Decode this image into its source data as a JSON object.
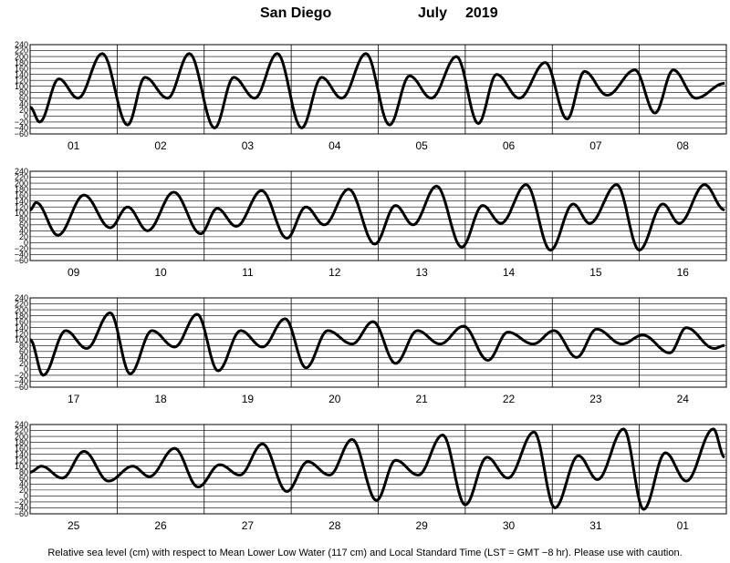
{
  "title": {
    "location": "San Diego",
    "month": "July",
    "year": "2019"
  },
  "footer": "Relative sea level (cm) with respect to Mean Lower Low Water (117 cm) and Local Standard Time (LST = GMT −8 hr). Please use with caution.",
  "chart_data": {
    "type": "line",
    "title": "San Diego July 2019",
    "ylim": [
      -60,
      240
    ],
    "yticks": [
      "240",
      "220",
      "200",
      "180",
      "160",
      "140",
      "120",
      "100",
      "80",
      "60",
      "40",
      "20",
      "0",
      "−20",
      "−40",
      "−60"
    ],
    "grid": true,
    "panels": [
      {
        "days": [
          "01",
          "02",
          "03",
          "04",
          "05",
          "06",
          "07",
          "08"
        ],
        "series": [
          {
            "x": [
              0,
              0.11,
              0.33,
              0.55,
              0.83,
              1.12,
              1.32,
              1.58,
              1.83,
              2.12,
              2.34,
              2.58,
              2.84,
              3.12,
              3.35,
              3.58,
              3.86,
              4.13,
              4.36,
              4.61,
              4.9,
              5.15,
              5.36,
              5.62,
              5.92,
              6.17,
              6.37,
              6.63,
              6.95,
              7.18,
              7.39,
              7.65,
              7.98
            ],
            "y": [
              30,
              -20,
              125,
              60,
              210,
              -30,
              130,
              60,
              210,
              -40,
              130,
              60,
              210,
              -40,
              130,
              60,
              210,
              -30,
              135,
              60,
              200,
              -25,
              140,
              60,
              180,
              -10,
              150,
              70,
              155,
              10,
              155,
              60,
              110
            ]
          }
        ]
      },
      {
        "days": [
          "09",
          "10",
          "11",
          "12",
          "13",
          "14",
          "15",
          "16"
        ],
        "series": [
          {
            "x": [
              0,
              0.07,
              0.32,
              0.62,
              0.92,
              1.12,
              1.35,
              1.65,
              1.96,
              2.15,
              2.37,
              2.66,
              2.95,
              3.17,
              3.38,
              3.66,
              3.96,
              4.2,
              4.4,
              4.67,
              4.96,
              5.2,
              5.41,
              5.7,
              5.98,
              6.24,
              6.43,
              6.74,
              7.0,
              7.27,
              7.46,
              7.75,
              7.98
            ],
            "y": [
              110,
              135,
              25,
              160,
              50,
              120,
              40,
              170,
              30,
              115,
              55,
              175,
              15,
              120,
              60,
              180,
              -5,
              125,
              60,
              190,
              -15,
              125,
              65,
              195,
              -25,
              130,
              65,
              195,
              -25,
              130,
              65,
              195,
              110
            ]
          }
        ]
      },
      {
        "days": [
          "17",
          "18",
          "19",
          "20",
          "21",
          "22",
          "23",
          "24"
        ],
        "series": [
          {
            "x": [
              0,
              0.15,
              0.41,
              0.65,
              0.92,
              1.15,
              1.4,
              1.66,
              1.92,
              2.16,
              2.42,
              2.67,
              2.93,
              3.17,
              3.42,
              3.7,
              3.94,
              4.2,
              4.45,
              4.71,
              4.98,
              5.26,
              5.49,
              5.78,
              6.02,
              6.28,
              6.51,
              6.8,
              7.04,
              7.35,
              7.54,
              7.86,
              7.98
            ],
            "y": [
              100,
              -20,
              130,
              70,
              190,
              -15,
              130,
              75,
              185,
              -5,
              130,
              75,
              170,
              5,
              130,
              85,
              160,
              20,
              130,
              85,
              145,
              30,
              125,
              85,
              130,
              40,
              135,
              85,
              115,
              55,
              140,
              70,
              80
            ]
          }
        ]
      },
      {
        "days": [
          "25",
          "26",
          "27",
          "28",
          "29",
          "30",
          "31",
          "01"
        ],
        "series": [
          {
            "x": [
              0,
              0.13,
              0.37,
              0.62,
              0.9,
              1.18,
              1.37,
              1.66,
              1.93,
              2.18,
              2.41,
              2.67,
              2.95,
              3.19,
              3.44,
              3.7,
              3.98,
              4.2,
              4.46,
              4.74,
              5.0,
              5.25,
              5.49,
              5.79,
              6.03,
              6.3,
              6.52,
              6.82,
              7.05,
              7.3,
              7.54,
              7.85,
              7.98
            ],
            "y": [
              80,
              100,
              60,
              150,
              50,
              100,
              65,
              160,
              30,
              105,
              70,
              175,
              15,
              115,
              70,
              190,
              -15,
              120,
              70,
              205,
              -30,
              130,
              60,
              215,
              -40,
              135,
              55,
              225,
              -45,
              145,
              50,
              225,
              130
            ]
          }
        ]
      }
    ]
  }
}
